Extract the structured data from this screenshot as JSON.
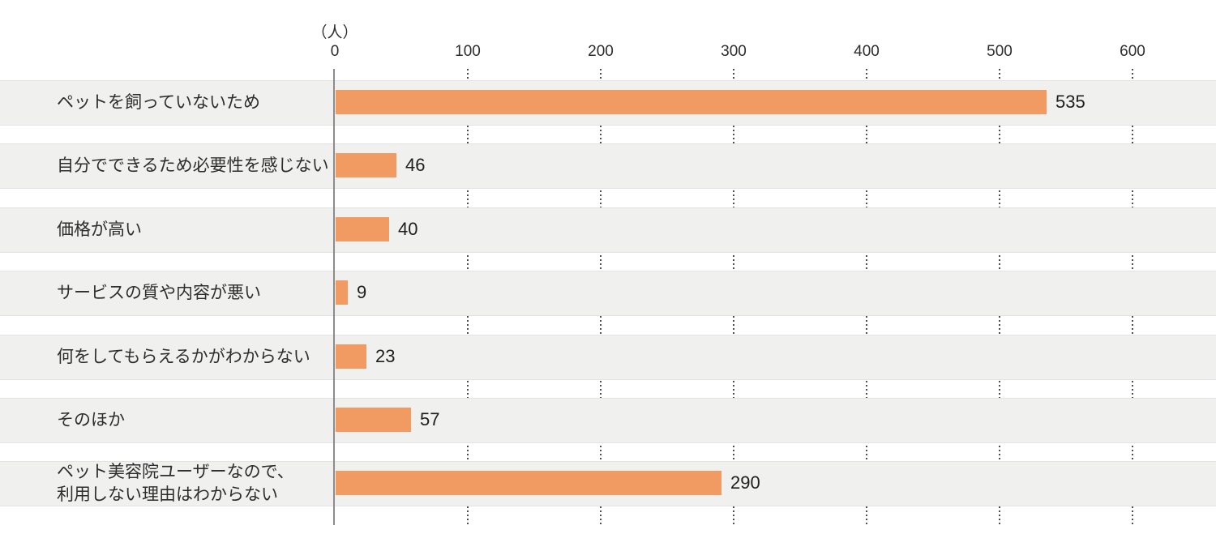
{
  "chart_data": {
    "type": "bar",
    "orientation": "horizontal",
    "title": "",
    "unit_label": "（人）",
    "categories": [
      "ペットを飼っていないため",
      "自分でできるため必要性を感じない",
      "価格が高い",
      "サービスの質や内容が悪い",
      "何をしてもらえるかがわからない",
      "そのほか",
      "ペット美容院ユーザーなので、\n利用しない理由はわからない"
    ],
    "values": [
      535,
      46,
      40,
      9,
      23,
      57,
      290
    ],
    "x_ticks": [
      0,
      100,
      200,
      300,
      400,
      500,
      600
    ],
    "xlim": [
      0,
      660
    ],
    "grid": "dotted-vertical",
    "legend": "none",
    "colors": {
      "bar": "#F19B63",
      "band": "#F0F0EE",
      "band_border": "#E3E3E1",
      "axis_line": "#8C8C8C",
      "grid_dot": "#4E4E4E",
      "text": "#2D2D2D"
    }
  }
}
